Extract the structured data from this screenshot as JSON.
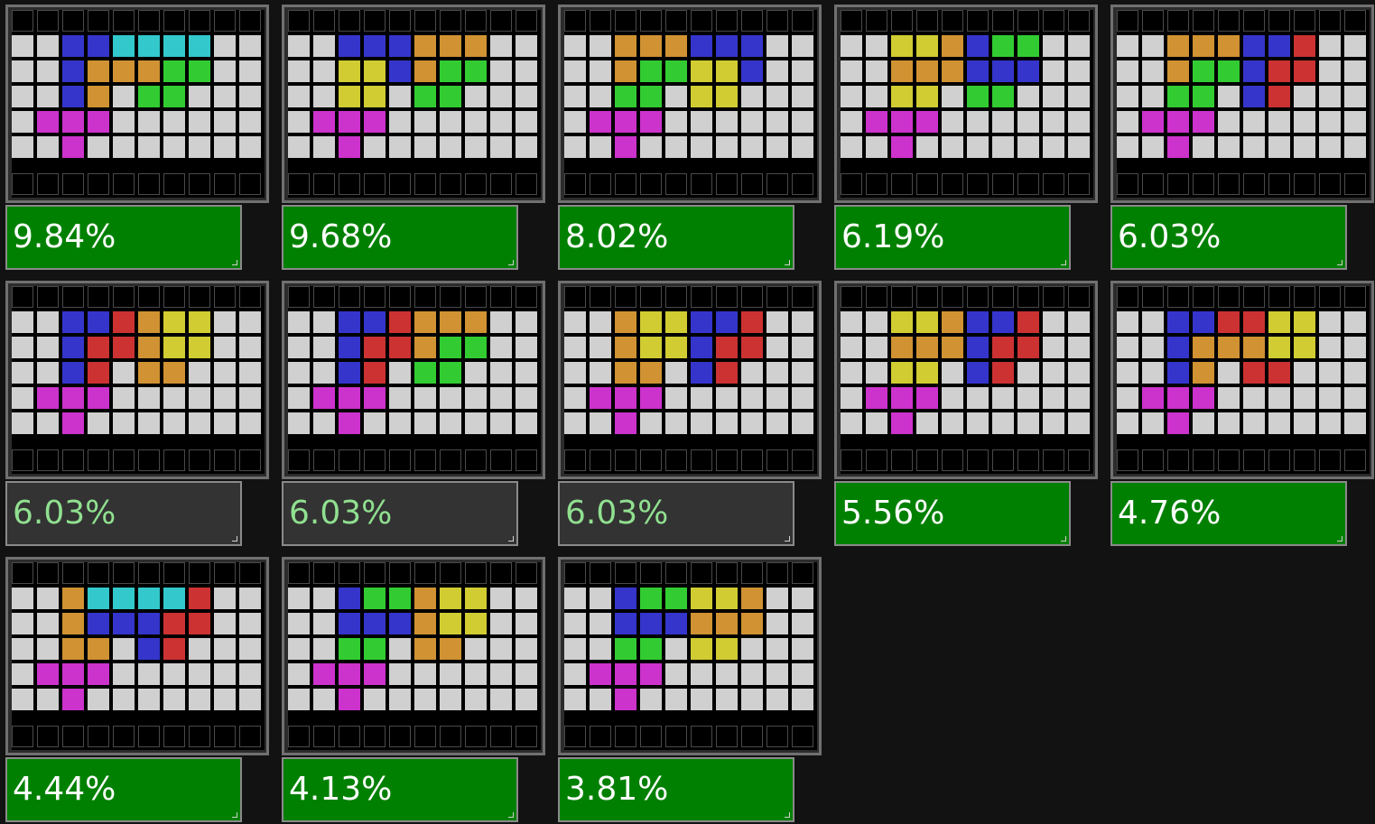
{
  "colors": {
    "k": "#000000",
    "e": "#d0d0d0",
    "B": "#3535cc",
    "C": "#32c8cc",
    "O": "#d09232",
    "G": "#32cc32",
    "Y": "#d0cc32",
    "M": "#cc32cc",
    "R": "#cc3232"
  },
  "cards": [
    {
      "percent": "9.84%",
      "dim": false,
      "board": [
        "kkkkkkkkkk",
        "eeBBCCCCee",
        "eeBOOOGGee",
        "eeBOeGGeee",
        "eMMMeeeeee",
        "eeMeeeeeee",
        "kkkkkkkkkk"
      ]
    },
    {
      "percent": "9.68%",
      "dim": false,
      "board": [
        "kkkkkkkkkk",
        "eeBBBOOOee",
        "eeYYBOGGee",
        "eeYYeGGeee",
        "eMMMeeeeee",
        "eeMeeeeeee",
        "kkkkkkkkkk"
      ]
    },
    {
      "percent": "8.02%",
      "dim": false,
      "board": [
        "kkkkkkkkkk",
        "eeOOOBBBee",
        "eeOGGYYBee",
        "eeGGeYYeee",
        "eMMMeeeeee",
        "eeMeeeeeee",
        "kkkkkkkkkk"
      ]
    },
    {
      "percent": "6.19%",
      "dim": false,
      "board": [
        "kkkkkkkkkk",
        "eeYYOBGGee",
        "eeOOOBBBee",
        "eeYYeGGeee",
        "eMMMeeeeee",
        "eeMeeeeeee",
        "kkkkkkkkkk"
      ]
    },
    {
      "percent": "6.03%",
      "dim": false,
      "board": [
        "kkkkkkkkkk",
        "eeOOOBBRee",
        "eeOGGBRRee",
        "eeGGeBReee",
        "eMMMeeeeee",
        "eeMeeeeeee",
        "kkkkkkkkkk"
      ]
    },
    {
      "percent": "6.03%",
      "dim": true,
      "board": [
        "kkkkkkkkkk",
        "eeBBROYYee",
        "eeBRROYYee",
        "eeBReOOeee",
        "eMMMeeeeee",
        "eeMeeeeeee",
        "kkkkkkkkkk"
      ]
    },
    {
      "percent": "6.03%",
      "dim": true,
      "board": [
        "kkkkkkkkkk",
        "eeBBROOOee",
        "eeBRROGGee",
        "eeBReGGeee",
        "eMMMeeeeee",
        "eeMeeeeeee",
        "kkkkkkkkkk"
      ]
    },
    {
      "percent": "6.03%",
      "dim": true,
      "board": [
        "kkkkkkkkkk",
        "eeOYYBBRee",
        "eeOYYBRRee",
        "eeOOeBReee",
        "eMMMeeeeee",
        "eeMeeeeeee",
        "kkkkkkkkkk"
      ]
    },
    {
      "percent": "5.56%",
      "dim": false,
      "board": [
        "kkkkkkkkkk",
        "eeYYOBBRee",
        "eeOOOBRRee",
        "eeYYeBReee",
        "eMMMeeeeee",
        "eeMeeeeeee",
        "kkkkkkkkkk"
      ]
    },
    {
      "percent": "4.76%",
      "dim": false,
      "board": [
        "kkkkkkkkkk",
        "eeBBRRYYee",
        "eeBOOOYYee",
        "eeBOeRReee",
        "eMMMeeeeee",
        "eeMeeeeeee",
        "kkkkkkkkkk"
      ]
    },
    {
      "percent": "4.44%",
      "dim": false,
      "board": [
        "kkkkkkkkkk",
        "eeOCCCCRee",
        "eeOBBBRRee",
        "eeOOeBReee",
        "eMMMeeeeee",
        "eeMeeeeeee",
        "kkkkkkkkkk"
      ]
    },
    {
      "percent": "4.13%",
      "dim": false,
      "board": [
        "kkkkkkkkkk",
        "eeBGGOYYee",
        "eeBBBOYYee",
        "eeGGeOOeee",
        "eMMMeeeeee",
        "eeMeeeeeee",
        "kkkkkkkkkk"
      ]
    },
    {
      "percent": "3.81%",
      "dim": false,
      "board": [
        "kkkkkkkkkk",
        "eeBGGYYOee",
        "eeBBBOOOee",
        "eeGGeYYeee",
        "eMMMeeeeee",
        "eeMeeeeeee",
        "kkkkkkkkkk"
      ]
    }
  ]
}
